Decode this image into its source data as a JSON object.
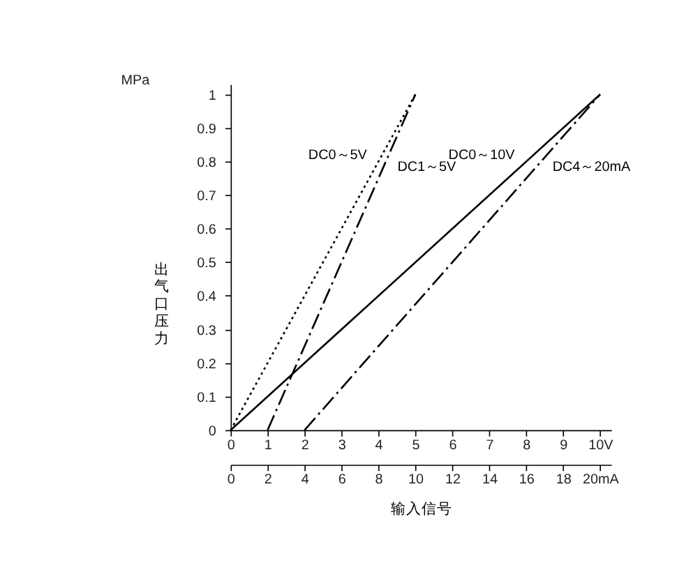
{
  "chart_data": {
    "type": "line",
    "xlabel": "输入信号",
    "ylabel": "出气口压力",
    "annotations": [
      "MPa"
    ],
    "xlim": [
      0,
      10.3
    ],
    "xticks": [
      0,
      1,
      2,
      3,
      4,
      5,
      6,
      7,
      8,
      9,
      {
        "value": 10,
        "label": "10V"
      }
    ],
    "x2lim": [
      0,
      20.6
    ],
    "x2ticks": [
      0,
      2,
      4,
      6,
      8,
      10,
      12,
      14,
      16,
      18,
      {
        "value": 20,
        "label": "20mA"
      }
    ],
    "ylim": [
      0,
      1.03
    ],
    "yticks": [
      0,
      0.1,
      0.2,
      0.3,
      0.4,
      0.5,
      0.6,
      0.7,
      0.8,
      0.9,
      1
    ],
    "series": [
      {
        "name": "DC0～5V",
        "color": "#000000",
        "x": [
          0,
          5
        ],
        "values": [
          0,
          1
        ],
        "line_style": "dotted"
      },
      {
        "name": "DC1～5V",
        "color": "#000000",
        "x": [
          1,
          5
        ],
        "values": [
          0,
          1
        ],
        "line_style": "dashed"
      },
      {
        "name": "DC0～10V",
        "color": "#000000",
        "x": [
          0,
          10
        ],
        "values": [
          0,
          1
        ],
        "line_style": "solid"
      },
      {
        "name": "DC4～20mA",
        "color": "#000000",
        "x": [
          2,
          10
        ],
        "values": [
          0,
          1
        ],
        "line_style": "dashed"
      }
    ]
  }
}
